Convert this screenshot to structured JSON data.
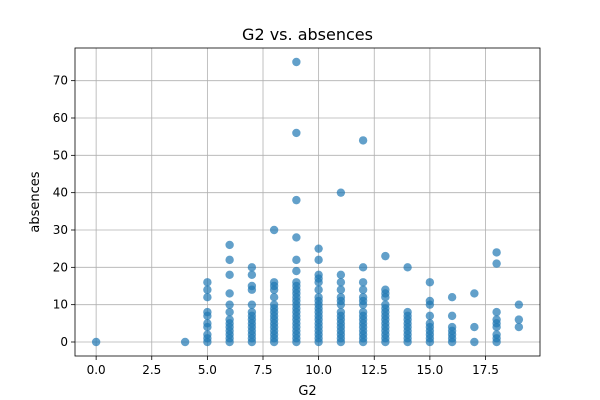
{
  "chart_data": {
    "type": "scatter",
    "title": "G2 vs. absences",
    "xlabel": "G2",
    "ylabel": "absences",
    "xlim": [
      -0.95,
      19.95
    ],
    "ylim": [
      -3.75,
      78.75
    ],
    "xticks": [
      0.0,
      2.5,
      5.0,
      7.5,
      10.0,
      12.5,
      15.0,
      17.5
    ],
    "xtick_labels": [
      "0.0",
      "2.5",
      "5.0",
      "7.5",
      "10.0",
      "12.5",
      "15.0",
      "17.5"
    ],
    "yticks": [
      0,
      10,
      20,
      30,
      40,
      50,
      60,
      70
    ],
    "ytick_labels": [
      "0",
      "10",
      "20",
      "30",
      "40",
      "50",
      "60",
      "70"
    ],
    "grid": true,
    "legend": "none",
    "series": [
      {
        "color": "#1f77b4",
        "points": [
          [
            0,
            0
          ],
          [
            4,
            0
          ],
          [
            5,
            0
          ],
          [
            5,
            1
          ],
          [
            5,
            2
          ],
          [
            5,
            4
          ],
          [
            5,
            5
          ],
          [
            5,
            7
          ],
          [
            5,
            8
          ],
          [
            5,
            12
          ],
          [
            5,
            14
          ],
          [
            5,
            16
          ],
          [
            6,
            0
          ],
          [
            6,
            1
          ],
          [
            6,
            2
          ],
          [
            6,
            3
          ],
          [
            6,
            4
          ],
          [
            6,
            5
          ],
          [
            6,
            6
          ],
          [
            6,
            8
          ],
          [
            6,
            10
          ],
          [
            6,
            13
          ],
          [
            6,
            18
          ],
          [
            6,
            22
          ],
          [
            6,
            26
          ],
          [
            7,
            0
          ],
          [
            7,
            1
          ],
          [
            7,
            2
          ],
          [
            7,
            3
          ],
          [
            7,
            4
          ],
          [
            7,
            5
          ],
          [
            7,
            6
          ],
          [
            7,
            7
          ],
          [
            7,
            8
          ],
          [
            7,
            10
          ],
          [
            7,
            14
          ],
          [
            7,
            15
          ],
          [
            7,
            18
          ],
          [
            7,
            20
          ],
          [
            8,
            0
          ],
          [
            8,
            1
          ],
          [
            8,
            2
          ],
          [
            8,
            3
          ],
          [
            8,
            4
          ],
          [
            8,
            5
          ],
          [
            8,
            6
          ],
          [
            8,
            7
          ],
          [
            8,
            8
          ],
          [
            8,
            9
          ],
          [
            8,
            10
          ],
          [
            8,
            12
          ],
          [
            8,
            14
          ],
          [
            8,
            15
          ],
          [
            8,
            16
          ],
          [
            8,
            30
          ],
          [
            9,
            0
          ],
          [
            9,
            1
          ],
          [
            9,
            2
          ],
          [
            9,
            3
          ],
          [
            9,
            4
          ],
          [
            9,
            5
          ],
          [
            9,
            6
          ],
          [
            9,
            7
          ],
          [
            9,
            8
          ],
          [
            9,
            9
          ],
          [
            9,
            10
          ],
          [
            9,
            11
          ],
          [
            9,
            12
          ],
          [
            9,
            13
          ],
          [
            9,
            14
          ],
          [
            9,
            15
          ],
          [
            9,
            16
          ],
          [
            9,
            19
          ],
          [
            9,
            22
          ],
          [
            9,
            28
          ],
          [
            9,
            38
          ],
          [
            9,
            56
          ],
          [
            9,
            75
          ],
          [
            10,
            0
          ],
          [
            10,
            1
          ],
          [
            10,
            2
          ],
          [
            10,
            3
          ],
          [
            10,
            4
          ],
          [
            10,
            5
          ],
          [
            10,
            6
          ],
          [
            10,
            7
          ],
          [
            10,
            8
          ],
          [
            10,
            9
          ],
          [
            10,
            10
          ],
          [
            10,
            11
          ],
          [
            10,
            12
          ],
          [
            10,
            14
          ],
          [
            10,
            16
          ],
          [
            10,
            17
          ],
          [
            10,
            18
          ],
          [
            10,
            22
          ],
          [
            10,
            25
          ],
          [
            11,
            0
          ],
          [
            11,
            1
          ],
          [
            11,
            2
          ],
          [
            11,
            3
          ],
          [
            11,
            4
          ],
          [
            11,
            5
          ],
          [
            11,
            6
          ],
          [
            11,
            7
          ],
          [
            11,
            8
          ],
          [
            11,
            10
          ],
          [
            11,
            11
          ],
          [
            11,
            12
          ],
          [
            11,
            14
          ],
          [
            11,
            16
          ],
          [
            11,
            18
          ],
          [
            11,
            40
          ],
          [
            12,
            0
          ],
          [
            12,
            1
          ],
          [
            12,
            2
          ],
          [
            12,
            3
          ],
          [
            12,
            4
          ],
          [
            12,
            5
          ],
          [
            12,
            6
          ],
          [
            12,
            7
          ],
          [
            12,
            8
          ],
          [
            12,
            10
          ],
          [
            12,
            11
          ],
          [
            12,
            12
          ],
          [
            12,
            14
          ],
          [
            12,
            16
          ],
          [
            12,
            20
          ],
          [
            12,
            54
          ],
          [
            13,
            0
          ],
          [
            13,
            1
          ],
          [
            13,
            2
          ],
          [
            13,
            3
          ],
          [
            13,
            4
          ],
          [
            13,
            5
          ],
          [
            13,
            6
          ],
          [
            13,
            7
          ],
          [
            13,
            8
          ],
          [
            13,
            9
          ],
          [
            13,
            10
          ],
          [
            13,
            12
          ],
          [
            13,
            13
          ],
          [
            13,
            14
          ],
          [
            13,
            23
          ],
          [
            14,
            0
          ],
          [
            14,
            1
          ],
          [
            14,
            2
          ],
          [
            14,
            3
          ],
          [
            14,
            4
          ],
          [
            14,
            5
          ],
          [
            14,
            6
          ],
          [
            14,
            7
          ],
          [
            14,
            8
          ],
          [
            14,
            20
          ],
          [
            15,
            0
          ],
          [
            15,
            1
          ],
          [
            15,
            2
          ],
          [
            15,
            3
          ],
          [
            15,
            4
          ],
          [
            15,
            5
          ],
          [
            15,
            7
          ],
          [
            15,
            10
          ],
          [
            15,
            11
          ],
          [
            15,
            16
          ],
          [
            16,
            0
          ],
          [
            16,
            1
          ],
          [
            16,
            2
          ],
          [
            16,
            3
          ],
          [
            16,
            4
          ],
          [
            16,
            7
          ],
          [
            16,
            12
          ],
          [
            17,
            0
          ],
          [
            17,
            4
          ],
          [
            17,
            13
          ],
          [
            18,
            0
          ],
          [
            18,
            1
          ],
          [
            18,
            2
          ],
          [
            18,
            4
          ],
          [
            18,
            5
          ],
          [
            18,
            6
          ],
          [
            18,
            8
          ],
          [
            18,
            21
          ],
          [
            18,
            24
          ],
          [
            19,
            4
          ],
          [
            19,
            6
          ],
          [
            19,
            10
          ]
        ]
      }
    ]
  }
}
